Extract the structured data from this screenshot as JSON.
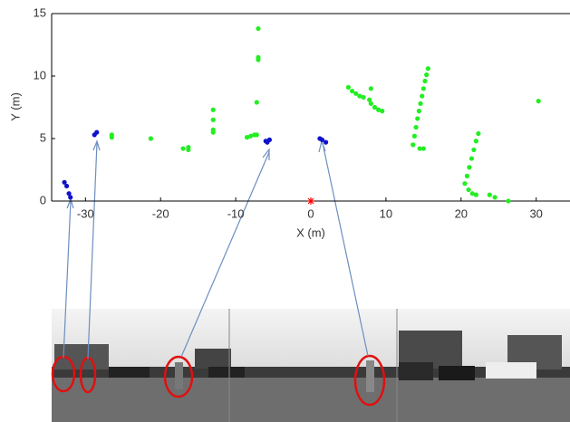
{
  "chart_data": {
    "type": "scatter",
    "x_label": "X (m)",
    "y_label": "Y (m)",
    "xlim": [
      -34.5,
      34.5
    ],
    "ylim": [
      0,
      15
    ],
    "xticks": [
      -30,
      -20,
      -10,
      0,
      10,
      20,
      30
    ],
    "yticks": [
      0,
      5,
      10,
      15
    ],
    "series": [
      {
        "color": "#22ee22",
        "marker": "dot",
        "x": [
          -26.5,
          -26.5,
          -21.3,
          -17,
          -16.3,
          -16.3,
          -13,
          -13,
          -13,
          -13,
          -8.5,
          -8,
          -7.5,
          -7.2,
          -7.2,
          -7,
          -7,
          -7,
          5,
          5.5,
          6,
          6.5,
          7,
          7.8,
          8,
          8.5,
          9,
          9.5,
          8,
          13.6,
          13.8,
          14,
          14.2,
          14.4,
          14.6,
          14.8,
          15,
          15.2,
          15.4,
          15.6,
          14.5,
          15,
          20.5,
          20.8,
          21.1,
          21.4,
          21.7,
          22,
          22.3,
          21,
          21.5,
          22,
          23.8,
          24.5,
          26.3,
          30.3
        ],
        "y": [
          5.3,
          5.1,
          5.0,
          4.2,
          4.3,
          4.1,
          5.5,
          5.7,
          6.5,
          7.3,
          5.1,
          5.2,
          5.3,
          5.3,
          7.9,
          11.3,
          11.5,
          13.8,
          9.1,
          8.8,
          8.6,
          8.4,
          8.3,
          8.1,
          7.8,
          7.5,
          7.3,
          7.2,
          9.0,
          4.5,
          5.2,
          5.9,
          6.6,
          7.2,
          7.8,
          8.4,
          9.0,
          9.6,
          10.1,
          10.6,
          4.2,
          4.2,
          1.4,
          2.0,
          2.7,
          3.4,
          4.1,
          4.8,
          5.4,
          0.9,
          0.6,
          0.5,
          0.5,
          0.3,
          0.0,
          8.0
        ]
      },
      {
        "color": "#1111cc",
        "marker": "dot",
        "x": [
          -32.8,
          -32.5,
          -32.2,
          -32,
          -28.8,
          -28.5,
          -6,
          -5.5,
          -5.8,
          1.2,
          1.5,
          2
        ],
        "y": [
          1.5,
          1.2,
          0.6,
          0.3,
          5.3,
          5.5,
          4.8,
          4.9,
          4.7,
          5.0,
          4.9,
          4.7
        ]
      },
      {
        "color": "#ff0000",
        "marker": "star",
        "x": [
          0
        ],
        "y": [
          0
        ]
      }
    ]
  }
}
